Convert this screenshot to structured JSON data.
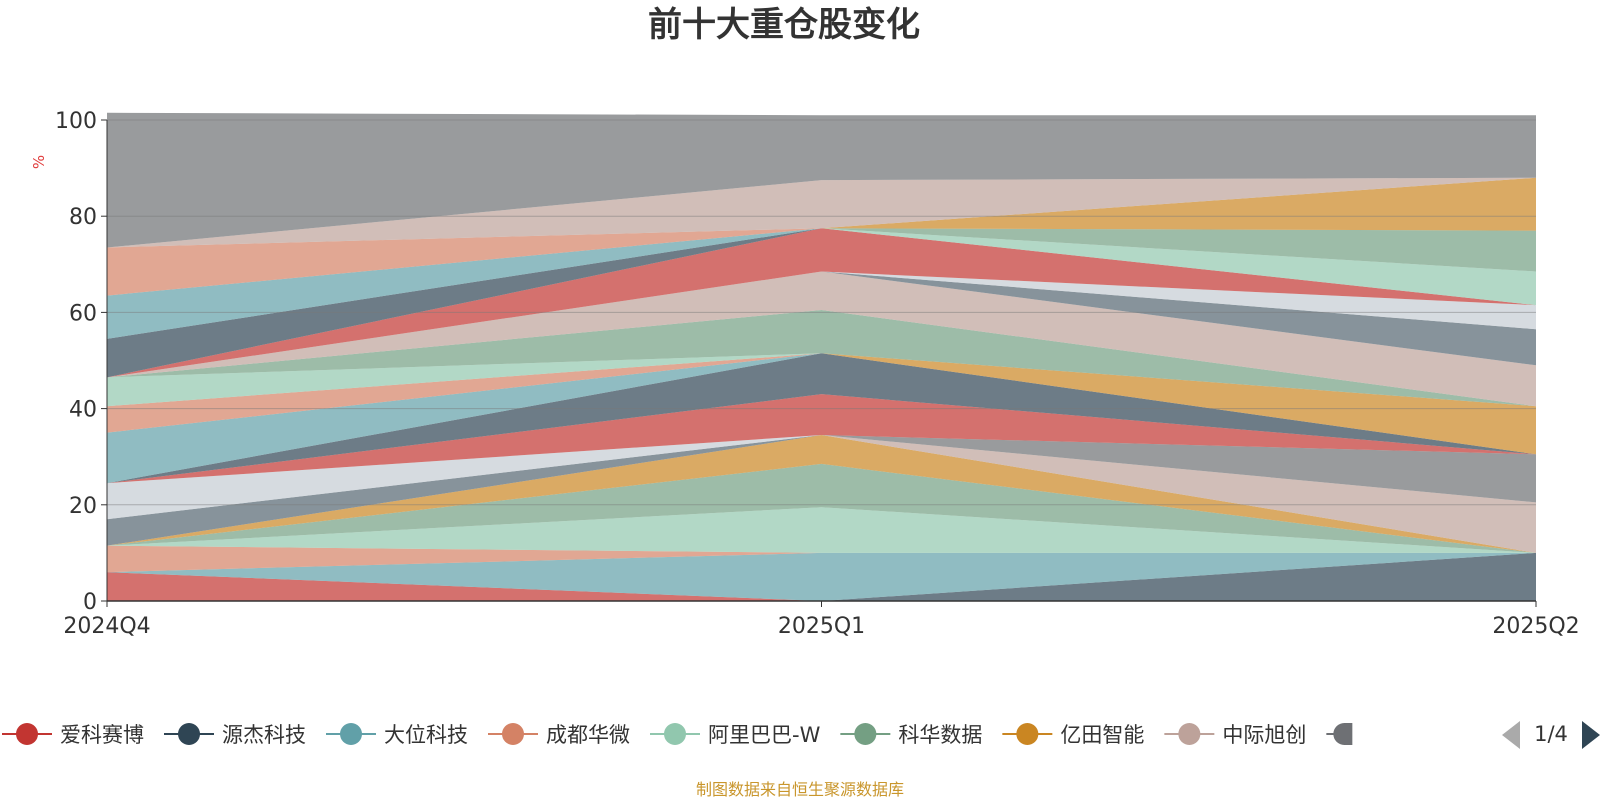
{
  "chart_data": {
    "type": "area",
    "title": "前十大重仓股变化",
    "ylabel": "%",
    "ylim": [
      0,
      100
    ],
    "yticks": [
      "0",
      "20",
      "40",
      "60",
      "80",
      "100"
    ],
    "categories": [
      "2024Q4",
      "2025Q1",
      "2025Q2"
    ],
    "series": [
      {
        "name": "爱科赛博",
        "color": "#c23531",
        "values": [
          6.0,
          0.0,
          0.0
        ]
      },
      {
        "name": "源杰科技",
        "color": "#2f4554",
        "values": [
          0.0,
          0.0,
          10.0
        ]
      },
      {
        "name": "大位科技",
        "color": "#61a0a8",
        "values": [
          0.0,
          10.0,
          0.0
        ]
      },
      {
        "name": "成都华微",
        "color": "#d48265",
        "values": [
          5.5,
          0.0,
          0.0
        ]
      },
      {
        "name": "阿里巴巴-W",
        "color": "#91c7ae",
        "values": [
          0.0,
          9.5,
          0.0
        ]
      },
      {
        "name": "科华数据",
        "color": "#749f83",
        "values": [
          0.0,
          9.0,
          0.0
        ]
      },
      {
        "name": "亿田智能",
        "color": "#ca8622",
        "values": [
          0.0,
          6.0,
          0.0
        ]
      },
      {
        "name": "中际旭创",
        "color": "#bda29a",
        "values": [
          0.0,
          0.0,
          10.5
        ]
      },
      {
        "name": "",
        "color": "#6e7074",
        "values": [
          0.0,
          0.0,
          10.0
        ]
      },
      {
        "name": "",
        "color": "#546570",
        "values": [
          5.5,
          0.0,
          0.0
        ]
      },
      {
        "name": "",
        "color": "#c4ccd3",
        "values": [
          7.5,
          0.0,
          0.0
        ]
      },
      {
        "name": "",
        "color": "#c23531",
        "values": [
          0.0,
          8.5,
          0.0
        ]
      },
      {
        "name": "",
        "color": "#2f4554",
        "values": [
          0.0,
          8.5,
          0.0
        ]
      },
      {
        "name": "",
        "color": "#61a0a8",
        "values": [
          10.5,
          0.0,
          0.0
        ]
      },
      {
        "name": "",
        "color": "#d48265",
        "values": [
          5.5,
          0.0,
          0.0
        ]
      },
      {
        "name": "",
        "color": "#ca8622",
        "values": [
          0.0,
          0.0,
          10.0
        ]
      },
      {
        "name": "",
        "color": "#91c7ae",
        "values": [
          6.0,
          0.0,
          0.0
        ]
      },
      {
        "name": "",
        "color": "#749f83",
        "values": [
          0.0,
          9.0,
          0.0
        ]
      },
      {
        "name": "",
        "color": "#bda29a",
        "values": [
          0.0,
          8.0,
          8.5
        ]
      },
      {
        "name": "",
        "color": "#546570",
        "values": [
          0.0,
          0.0,
          7.5
        ]
      },
      {
        "name": "",
        "color": "#c4ccd3",
        "values": [
          0.0,
          0.0,
          5.0
        ]
      },
      {
        "name": "",
        "color": "#c23531",
        "values": [
          0.0,
          9.0,
          0.0
        ]
      },
      {
        "name": "",
        "color": "#91c7ae",
        "values": [
          0.0,
          0.0,
          7.0
        ]
      },
      {
        "name": "",
        "color": "#2f4554",
        "values": [
          8.0,
          0.0,
          0.0
        ]
      },
      {
        "name": "",
        "color": "#61a0a8",
        "values": [
          9.0,
          0.0,
          0.0
        ]
      },
      {
        "name": "",
        "color": "#749f83",
        "values": [
          0.0,
          0.0,
          8.5
        ]
      },
      {
        "name": "",
        "color": "#d48265",
        "values": [
          10.0,
          0.0,
          0.0
        ]
      },
      {
        "name": "",
        "color": "#ca8622",
        "values": [
          0.0,
          0.0,
          11.0
        ]
      },
      {
        "name": "",
        "color": "#bda29a",
        "values": [
          0.0,
          10.0,
          0.0
        ]
      },
      {
        "name": "",
        "color": "#6e7074",
        "values": [
          28.0,
          13.5,
          13.0
        ]
      }
    ]
  },
  "legend": {
    "items": [
      {
        "name": "爱科赛博",
        "color": "#c23531"
      },
      {
        "name": "源杰科技",
        "color": "#2f4554"
      },
      {
        "name": "大位科技",
        "color": "#61a0a8"
      },
      {
        "name": "成都华微",
        "color": "#d48265"
      },
      {
        "name": "阿里巴巴-W",
        "color": "#91c7ae"
      },
      {
        "name": "科华数据",
        "color": "#749f83"
      },
      {
        "name": "亿田智能",
        "color": "#ca8622"
      },
      {
        "name": "中际旭创",
        "color": "#bda29a"
      }
    ],
    "next_item_color": "#6e7074",
    "page": "1/4",
    "prev_arrow_color": "#aaaaaa",
    "next_arrow_color": "#2f4554"
  },
  "source_note": "制图数据来自恒生聚源数据库"
}
